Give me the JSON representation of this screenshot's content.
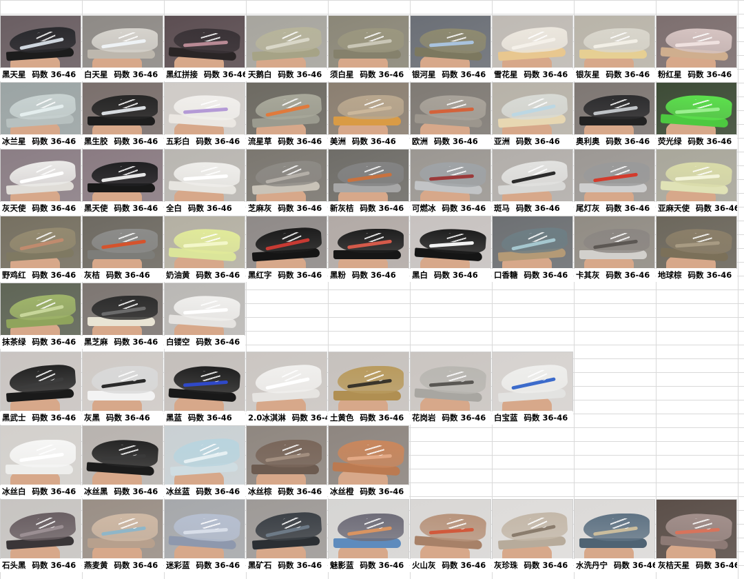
{
  "size_label": "码数 36-46",
  "products": [
    {
      "name": "黑天星",
      "bg": "#6a5e62",
      "upper": "#2a2a2e",
      "sole": "#1c1c1c",
      "stripe": "#cfd6de"
    },
    {
      "name": "白天星",
      "bg": "#8e8a86",
      "upper": "#d6d3cd",
      "sole": "#bdb7ad",
      "stripe": "#eef2f5"
    },
    {
      "name": "黑红拼接",
      "bg": "#5c4e52",
      "upper": "#3a3337",
      "sole": "#2a2526",
      "stripe": "#b98a95"
    },
    {
      "name": "天鹅白",
      "bg": "#a7a59e",
      "upper": "#b7b49b",
      "sole": "#a6a386",
      "stripe": "#d9d7c8"
    },
    {
      "name": "须白星",
      "bg": "#8b8778",
      "upper": "#9b977f",
      "sole": "#85816c",
      "stripe": "#c9c6b6"
    },
    {
      "name": "银河星",
      "bg": "#6b6f76",
      "upper": "#8e8a70",
      "sole": "#7c785f",
      "stripe": "#a9c3de"
    },
    {
      "name": "雪花星",
      "bg": "#bfbab4",
      "upper": "#ece7de",
      "sole": "#e8c78f",
      "stripe": "#f5f1ea"
    },
    {
      "name": "银灰星",
      "bg": "#b9b4a9",
      "upper": "#d9d6cc",
      "sole": "#e6cf93",
      "stripe": "#f2efe6"
    },
    {
      "name": "粉红星",
      "bg": "#7d6f6f",
      "upper": "#d6c4c2",
      "sole": "#cfae8e",
      "stripe": "#efe1df"
    },
    {
      "name": "冰兰星",
      "bg": "#9ba4a4",
      "upper": "#c8d2d1",
      "sole": "#b7c0bf",
      "stripe": "#e4eeee"
    },
    {
      "name": "黑生胶",
      "bg": "#7a6f6c",
      "upper": "#262626",
      "sole": "#1d1d1d",
      "stripe": "#d8dce0"
    },
    {
      "name": "五彩白",
      "bg": "#cfcbc7",
      "upper": "#f1efec",
      "sole": "#ebe7e2",
      "stripe": "#b49ad6"
    },
    {
      "name": "流星草",
      "bg": "#6d6a62",
      "upper": "#a8a89a",
      "sole": "#9b9b8f",
      "stripe": "#e07a3c"
    },
    {
      "name": "美洲",
      "bg": "#8b7f71",
      "upper": "#b9a78e",
      "sole": "#d99b45",
      "stripe": "#cbb79b"
    },
    {
      "name": "欧洲",
      "bg": "#7f7a74",
      "upper": "#a9a39a",
      "sole": "#9c968d",
      "stripe": "#d4623a"
    },
    {
      "name": "亚洲",
      "bg": "#b7b2a8",
      "upper": "#d8dad5",
      "sole": "#e7d7b2",
      "stripe": "#bcd7e3"
    },
    {
      "name": "奥利奥",
      "bg": "#7e7773",
      "upper": "#2d2d2f",
      "sole": "#222",
      "stripe": "#bfc3c7"
    },
    {
      "name": "荧光绿",
      "bg": "#3d4b36",
      "upper": "#5ce04d",
      "sole": "#4dc940",
      "stripe": "#9bf08f"
    },
    {
      "name": "灰天使",
      "bg": "#8b7e85",
      "upper": "#ebeae8",
      "sole": "#e0ddd8",
      "stripe": "#ffffff"
    },
    {
      "name": "黑天使",
      "bg": "#8a7b82",
      "upper": "#202022",
      "sole": "#181818",
      "stripe": "#e7e7e7"
    },
    {
      "name": "全白",
      "bg": "#b9b6b1",
      "upper": "#efeeeb",
      "sole": "#e7e5e0",
      "stripe": "#ffffff"
    },
    {
      "name": "芝麻灰",
      "bg": "#7b7770",
      "upper": "#8d8a85",
      "sole": "#c9c3b8",
      "stripe": "#b4afa8"
    },
    {
      "name": "新灰桔",
      "bg": "#6f6d68",
      "upper": "#838383",
      "sole": "#a7a7a7",
      "stripe": "#c8723f"
    },
    {
      "name": "可燃冰",
      "bg": "#9b9792",
      "upper": "#9fa3a6",
      "sole": "#c2c4c6",
      "stripe": "#9b3a3a"
    },
    {
      "name": "斑马",
      "bg": "#b2aeaa",
      "upper": "#e2e2e0",
      "sole": "#d8d8d6",
      "stripe": "#2b2b2b"
    },
    {
      "name": "尾灯灰",
      "bg": "#9c9894",
      "upper": "#9a9a9a",
      "sole": "#cfcfcf",
      "stripe": "#d33b2c"
    },
    {
      "name": "亚麻天使",
      "bg": "#a9a79b",
      "upper": "#d9dba9",
      "sole": "#e0e2b6",
      "stripe": "#f3f4da"
    },
    {
      "name": "野鸡红",
      "bg": "#767061",
      "upper": "#948a70",
      "sole": "#7f7962",
      "stripe": "#c08b6e"
    },
    {
      "name": "灰桔",
      "bg": "#6e6a62",
      "upper": "#8c8c8a",
      "sole": "#7d7d79",
      "stripe": "#d5532c"
    },
    {
      "name": "奶油黄",
      "bg": "#b4b0a3",
      "upper": "#e1ea9a",
      "sole": "#dbe59a",
      "stripe": "#f3f7c9"
    },
    {
      "name": "黑红字",
      "bg": "#8f8a88",
      "upper": "#1c1c1c",
      "sole": "#151515",
      "stripe": "#c73a33"
    },
    {
      "name": "黑粉",
      "bg": "#b2aaa6",
      "upper": "#1e1e1e",
      "sole": "#161616",
      "stripe": "#d45a4a"
    },
    {
      "name": "黑白",
      "bg": "#c7c2c0",
      "upper": "#1d1d1d",
      "sole": "#151515",
      "stripe": "#f2f2f2"
    },
    {
      "name": "口香糖",
      "bg": "#6d7073",
      "upper": "#6e7e84",
      "sole": "#b49a76",
      "stripe": "#a5c7cf"
    },
    {
      "name": "卡其灰",
      "bg": "#918c84",
      "upper": "#8c8783",
      "sole": "#d2d0cc",
      "stripe": "#5c5753"
    },
    {
      "name": "地球棕",
      "bg": "#6c675c",
      "upper": "#8b7f69",
      "sole": "#7b7059",
      "stripe": "#a89b83"
    },
    {
      "name": "抹茶绿",
      "bg": "#5f6556",
      "upper": "#9fb46a",
      "sole": "#8fa45c",
      "stripe": "#c7d69a"
    },
    {
      "name": "黑芝麻",
      "bg": "#7d7672",
      "upper": "#2d2d2d",
      "sole": "#e9e4d4",
      "stripe": "#6b6b6b"
    },
    {
      "name": "白镂空",
      "bg": "#bab8b5",
      "upper": "#f0efed",
      "sole": "#e5e3e0",
      "stripe": "#ffffff"
    },
    {
      "name": "黑武士",
      "bg": "#c9c4c1",
      "upper": "#232323",
      "sole": "#1a1a1a",
      "stripe": "#3c3c3c"
    },
    {
      "name": "灰黑",
      "bg": "#cfcac6",
      "upper": "#d9d9d9",
      "sole": "#f3f3f3",
      "stripe": "#2a2a2a"
    },
    {
      "name": "黑蓝",
      "bg": "#c4bfbb",
      "upper": "#202020",
      "sole": "#191919",
      "stripe": "#2f49c8"
    },
    {
      "name": "2.0冰淇淋",
      "bg": "#cbc6c2",
      "upper": "#f1f0ee",
      "sole": "#e6e4e1",
      "stripe": "#ffffff"
    },
    {
      "name": "土黄色",
      "bg": "#c6c1bd",
      "upper": "#b99b5e",
      "sole": "#b08f52",
      "stripe": "#3a352b"
    },
    {
      "name": "花岗岩",
      "bg": "#cac5c1",
      "upper": "#b9b7b2",
      "sole": "#a8a6a1",
      "stripe": "#595753"
    },
    {
      "name": "白宝蓝",
      "bg": "#d6d2cf",
      "upper": "#eeeeec",
      "sole": "#e3e3e1",
      "stripe": "#3c6bcb"
    },
    {
      "name": "冰丝白",
      "bg": "#d3d0cc",
      "upper": "#f6f6f5",
      "sole": "#eeeeec",
      "stripe": "#ffffff"
    },
    {
      "name": "冰丝黑",
      "bg": "#b8b3af",
      "upper": "#252525",
      "sole": "#1b1b1b",
      "stripe": "#3a3a3a"
    },
    {
      "name": "冰丝蓝",
      "bg": "#c9d0d3",
      "upper": "#b9d4de",
      "sole": "#cfdde2",
      "stripe": "#e6f0f3"
    },
    {
      "name": "冰丝棕",
      "bg": "#8f8780",
      "upper": "#7a675b",
      "sole": "#6c5b50",
      "stripe": "#a28e7f"
    },
    {
      "name": "冰丝橙",
      "bg": "#8e8680",
      "upper": "#c9875d",
      "sole": "#bb7a51",
      "stripe": "#e3a985"
    },
    {
      "name": "石头黑",
      "bg": "#c7c4c1",
      "upper": "#6a5f63",
      "sole": "#3a3638",
      "stripe": "#9b8f93"
    },
    {
      "name": "燕麦黄",
      "bg": "#9a8f86",
      "upper": "#cfb9a5",
      "sole": "#b7a08d",
      "stripe": "#8fb6c8"
    },
    {
      "name": "迷彩蓝",
      "bg": "#a6a8ab",
      "upper": "#b6bfd0",
      "sole": "#8e98ad",
      "stripe": "#d8dee9"
    },
    {
      "name": "黑矿石",
      "bg": "#9e9a97",
      "upper": "#3c4147",
      "sole": "#2b2f33",
      "stripe": "#6d7a87"
    },
    {
      "name": "魅影蓝",
      "bg": "#d6d5d3",
      "upper": "#6f6d79",
      "sole": "#5e8bbd",
      "stripe": "#d99461"
    },
    {
      "name": "火山灰",
      "bg": "#d9d7d5",
      "upper": "#b8947c",
      "sole": "#a78168",
      "stripe": "#d1593c"
    },
    {
      "name": "灰珍珠",
      "bg": "#dedcda",
      "upper": "#c4b8a9",
      "sole": "#b7ab9b",
      "stripe": "#8a7c6d"
    },
    {
      "name": "水洗丹宁",
      "bg": "#dcdad8",
      "upper": "#5f7384",
      "sole": "#4f6373",
      "stripe": "#cbbd9d"
    },
    {
      "name": "灰桔天星",
      "bg": "#5b4f49",
      "upper": "#a3908c",
      "sole": "#8d7a75",
      "stripe": "#d8735b"
    }
  ]
}
